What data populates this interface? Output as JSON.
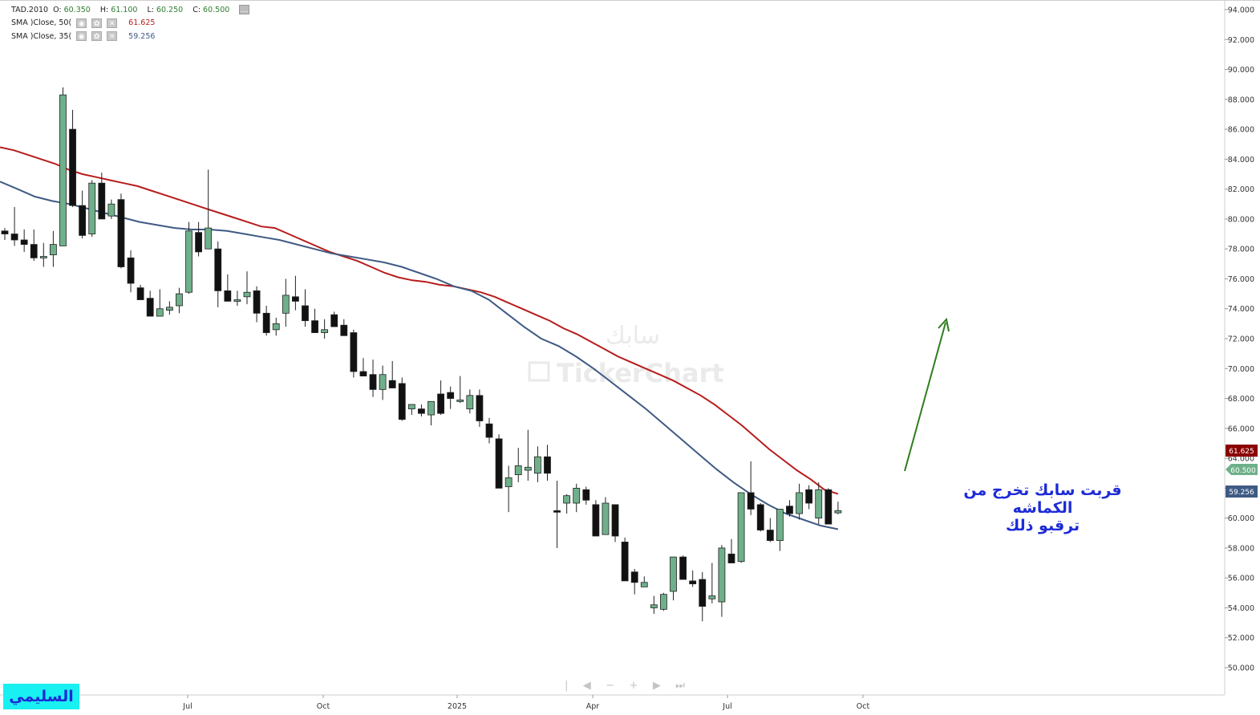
{
  "legend": {
    "symbol": "TAD.2010",
    "open_label": "O:",
    "open": "60.350",
    "high_label": "H:",
    "high": "61.100",
    "low_label": "L:",
    "low": "60.250",
    "close_label": "C:",
    "close": "60.500",
    "sma1_label": "SMA  )Close, 50(",
    "sma1_value": "61.625",
    "sma2_label": "SMA  )Close, 35(",
    "sma2_value": "59.256"
  },
  "watermark": {
    "arabic": "سابك",
    "brand": "TickerChart"
  },
  "annotation": {
    "line1": "قربت سابك تخرج من الكماشه",
    "line2": "ترقبو ذلك"
  },
  "signature": "السليمي",
  "price_tags": {
    "sma50": "61.625",
    "last": "60.500",
    "sma35": "59.256"
  },
  "colors": {
    "up": "#6fb08a",
    "down": "#111111",
    "sma50": "#b71c1c",
    "sma35": "#3f5a84",
    "arrow": "#2e7d1f",
    "annotation": "#1d2bd6",
    "signature_bg": "#19f0f2"
  },
  "chart_data": {
    "type": "candlestick",
    "title": "TAD.2010",
    "y_axis_ticks": [
      "94.000",
      "92.000",
      "90.000",
      "88.000",
      "86.000",
      "84.000",
      "82.000",
      "80.000",
      "78.000",
      "76.000",
      "74.000",
      "72.000",
      "70.000",
      "68.000",
      "66.000",
      "64.000",
      "62.000",
      "60.000",
      "58.000",
      "56.000",
      "54.000",
      "52.000",
      "50.000"
    ],
    "x_axis_labels": [
      "Jul",
      "Oct",
      "2025",
      "Apr",
      "Jul",
      "Oct"
    ],
    "ylim": [
      49.5,
      95
    ],
    "candles": [
      [
        79.2,
        79.4,
        78.6,
        79.0
      ],
      [
        79.0,
        80.8,
        78.2,
        78.6
      ],
      [
        78.6,
        79.3,
        77.8,
        78.3
      ],
      [
        78.3,
        79.3,
        77.2,
        77.4
      ],
      [
        77.4,
        78.4,
        76.8,
        77.5
      ],
      [
        77.6,
        79.2,
        76.8,
        78.3
      ],
      [
        78.2,
        88.8,
        78.2,
        88.3
      ],
      [
        86.0,
        87.3,
        80.8,
        80.9
      ],
      [
        80.9,
        81.9,
        78.7,
        78.9
      ],
      [
        79.0,
        82.6,
        78.8,
        82.4
      ],
      [
        82.4,
        83.1,
        80.0,
        80.0
      ],
      [
        80.2,
        81.3,
        80.0,
        81.0
      ],
      [
        81.3,
        81.7,
        76.7,
        76.8
      ],
      [
        77.4,
        77.9,
        75.1,
        75.7
      ],
      [
        75.4,
        75.6,
        74.7,
        74.6
      ],
      [
        74.7,
        75.2,
        73.5,
        73.5
      ],
      [
        73.5,
        75.3,
        73.6,
        74.0
      ],
      [
        73.9,
        74.5,
        73.6,
        74.1
      ],
      [
        74.2,
        75.4,
        73.7,
        75.0
      ],
      [
        75.1,
        79.8,
        75.0,
        79.2
      ],
      [
        79.1,
        79.8,
        77.5,
        77.8
      ],
      [
        78.0,
        83.3,
        78.0,
        79.4
      ],
      [
        78.0,
        78.5,
        74.1,
        75.2
      ],
      [
        75.2,
        76.3,
        74.5,
        74.5
      ],
      [
        74.6,
        75.2,
        74.2,
        74.6
      ],
      [
        74.8,
        76.5,
        74.3,
        75.1
      ],
      [
        75.2,
        75.5,
        73.1,
        73.7
      ],
      [
        73.7,
        74.2,
        72.2,
        72.4
      ],
      [
        72.6,
        73.4,
        72.2,
        73.0
      ],
      [
        73.7,
        76.0,
        72.8,
        74.9
      ],
      [
        74.8,
        76.2,
        73.9,
        74.5
      ],
      [
        74.2,
        75.3,
        72.8,
        73.2
      ],
      [
        73.2,
        74.0,
        72.4,
        72.4
      ],
      [
        72.4,
        73.3,
        72.0,
        72.6
      ],
      [
        73.6,
        73.8,
        72.9,
        72.8
      ],
      [
        72.9,
        73.3,
        72.4,
        72.2
      ],
      [
        72.4,
        72.6,
        69.4,
        69.8
      ],
      [
        69.8,
        70.7,
        69.6,
        69.5
      ],
      [
        69.6,
        70.6,
        68.1,
        68.6
      ],
      [
        68.6,
        70.2,
        67.9,
        69.6
      ],
      [
        69.2,
        70.5,
        68.9,
        68.7
      ],
      [
        69.0,
        69.4,
        66.5,
        66.6
      ],
      [
        67.3,
        67.3,
        66.9,
        67.6
      ],
      [
        67.3,
        67.6,
        66.8,
        67.0
      ],
      [
        66.9,
        67.8,
        66.2,
        67.8
      ],
      [
        68.3,
        69.2,
        66.9,
        67.0
      ],
      [
        68.4,
        68.8,
        67.3,
        68.0
      ],
      [
        67.9,
        69.5,
        67.7,
        67.9
      ],
      [
        67.3,
        68.6,
        67.0,
        68.2
      ],
      [
        68.2,
        68.6,
        66.1,
        66.5
      ],
      [
        66.3,
        66.7,
        65.0,
        65.4
      ],
      [
        65.3,
        65.6,
        62.0,
        62.0
      ],
      [
        62.1,
        63.5,
        60.4,
        62.7
      ],
      [
        62.9,
        64.7,
        62.4,
        63.5
      ],
      [
        63.2,
        65.9,
        62.5,
        63.4
      ],
      [
        63.0,
        64.8,
        62.4,
        64.1
      ],
      [
        64.1,
        64.9,
        62.5,
        63.0
      ],
      [
        60.5,
        62.5,
        58.0,
        60.4
      ],
      [
        61.0,
        61.6,
        60.3,
        61.5
      ],
      [
        61.0,
        62.3,
        60.4,
        62.0
      ],
      [
        61.9,
        62.1,
        60.9,
        61.2
      ],
      [
        60.9,
        61.2,
        58.8,
        58.8
      ],
      [
        58.9,
        61.4,
        59.1,
        61.0
      ],
      [
        60.9,
        60.9,
        58.4,
        58.8
      ],
      [
        58.4,
        58.7,
        55.8,
        55.8
      ],
      [
        56.4,
        56.6,
        54.9,
        55.7
      ],
      [
        55.4,
        56.1,
        55.6,
        55.7
      ],
      [
        54.0,
        54.8,
        53.6,
        54.2
      ],
      [
        53.9,
        55.0,
        53.8,
        54.9
      ],
      [
        55.1,
        57.1,
        54.5,
        57.4
      ],
      [
        57.4,
        57.5,
        56.0,
        55.9
      ],
      [
        55.8,
        56.5,
        55.4,
        55.6
      ],
      [
        55.9,
        56.4,
        53.1,
        54.1
      ],
      [
        54.6,
        57.0,
        54.3,
        54.8
      ],
      [
        54.4,
        58.2,
        53.4,
        58.0
      ],
      [
        57.6,
        58.6,
        57.0,
        57.0
      ],
      [
        57.1,
        61.5,
        57.0,
        61.7
      ],
      [
        61.7,
        63.8,
        60.2,
        60.6
      ],
      [
        60.9,
        61.0,
        59.1,
        59.2
      ],
      [
        59.2,
        60.0,
        58.4,
        58.5
      ],
      [
        58.5,
        60.6,
        57.8,
        60.6
      ],
      [
        60.8,
        61.2,
        60.1,
        60.3
      ],
      [
        60.3,
        62.3,
        59.9,
        61.7
      ],
      [
        61.9,
        62.2,
        60.6,
        61.0
      ],
      [
        60.0,
        62.4,
        59.6,
        61.9
      ],
      [
        61.9,
        62.0,
        59.7,
        59.6
      ],
      [
        60.35,
        61.1,
        60.25,
        60.5
      ]
    ],
    "series": [
      {
        "name": "SMA )Close, 50(",
        "values": [
          84.8,
          84.6,
          84.3,
          84.0,
          83.7,
          83.3,
          83.0,
          82.8,
          82.6,
          82.4,
          82.2,
          81.9,
          81.6,
          81.3,
          81.0,
          80.7,
          80.4,
          80.1,
          79.8,
          79.5,
          79.4,
          79.0,
          78.6,
          78.2,
          77.8,
          77.5,
          77.2,
          76.8,
          76.4,
          76.1,
          75.9,
          75.8,
          75.6,
          75.5,
          75.3,
          75.1,
          74.8,
          74.4,
          74.0,
          73.6,
          73.2,
          72.7,
          72.3,
          71.8,
          71.3,
          70.8,
          70.4,
          70.0,
          69.6,
          69.2,
          68.7,
          68.2,
          67.6,
          66.9,
          66.2,
          65.4,
          64.6,
          63.9,
          63.2,
          62.6,
          61.9,
          61.625
        ]
      },
      {
        "name": "SMA )Close, 35(",
        "values": [
          82.5,
          82.0,
          81.5,
          81.2,
          81.0,
          80.7,
          80.4,
          80.1,
          79.8,
          79.6,
          79.4,
          79.3,
          79.3,
          79.2,
          79.0,
          78.8,
          78.6,
          78.3,
          78.0,
          77.7,
          77.5,
          77.3,
          77.1,
          76.8,
          76.4,
          76.0,
          75.5,
          75.2,
          74.6,
          73.7,
          72.8,
          72.0,
          71.5,
          70.8,
          70.0,
          69.1,
          68.2,
          67.3,
          66.3,
          65.3,
          64.3,
          63.3,
          62.4,
          61.6,
          60.9,
          60.3,
          59.9,
          59.5,
          59.256
        ]
      }
    ]
  }
}
